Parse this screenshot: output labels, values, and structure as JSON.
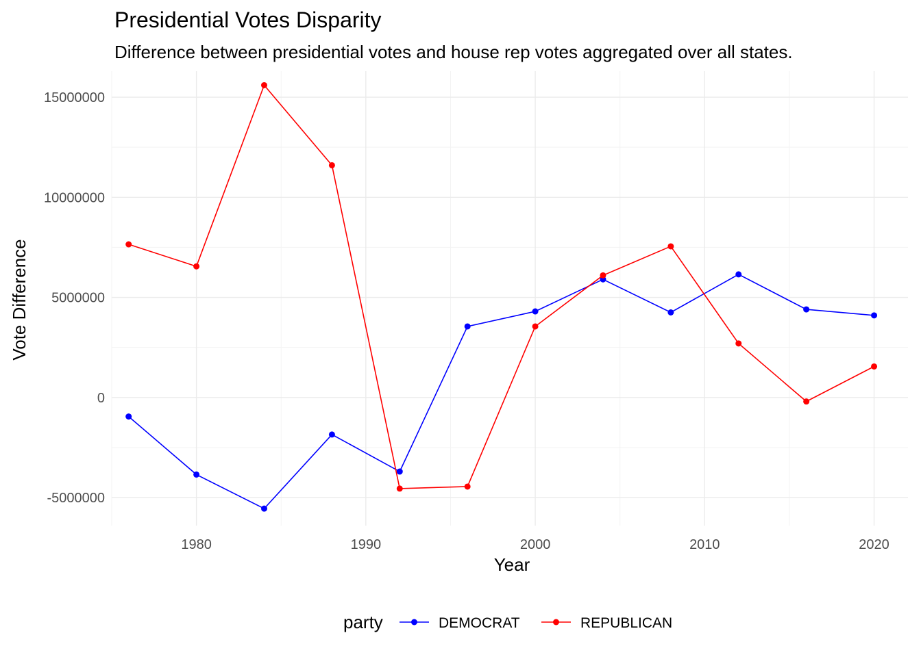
{
  "chart_data": {
    "type": "line",
    "title": "Presidential Votes Disparity",
    "subtitle": "Difference between presidential votes and house rep votes aggregated over all states.",
    "xlabel": "Year",
    "ylabel": "Vote Difference",
    "x": [
      1976,
      1980,
      1984,
      1988,
      1992,
      1996,
      2000,
      2004,
      2008,
      2012,
      2016,
      2020
    ],
    "xlim": [
      1975,
      2022
    ],
    "ylim": [
      -6400000,
      16300000
    ],
    "x_ticks": [
      1980,
      1990,
      2000,
      2010,
      2020
    ],
    "x_tick_labels": [
      "1980",
      "1990",
      "2000",
      "2010",
      "2020"
    ],
    "y_ticks": [
      -5000000,
      0,
      5000000,
      10000000,
      15000000
    ],
    "y_tick_labels": [
      "-5000000",
      "0",
      "5000000",
      "10000000",
      "15000000"
    ],
    "grid": true,
    "legend": {
      "title": "party",
      "position": "bottom"
    },
    "series": [
      {
        "name": "DEMOCRAT",
        "color": "#0000ff",
        "values": [
          -950000,
          -3850000,
          -5550000,
          -1850000,
          -3700000,
          3550000,
          4300000,
          5900000,
          4250000,
          6150000,
          4400000,
          4100000
        ]
      },
      {
        "name": "REPUBLICAN",
        "color": "#ff0000",
        "values": [
          7650000,
          6550000,
          15600000,
          11600000,
          -4550000,
          -4450000,
          3550000,
          6100000,
          7550000,
          2700000,
          -200000,
          1550000
        ]
      }
    ]
  }
}
